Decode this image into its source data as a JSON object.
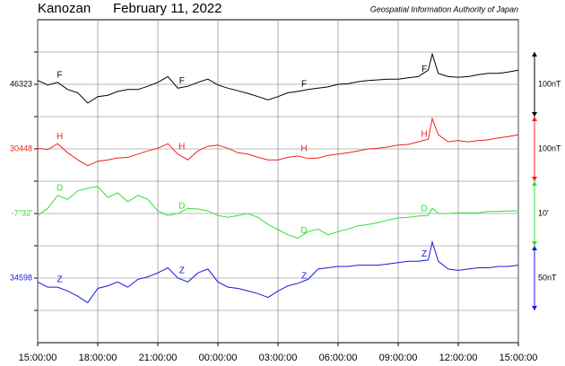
{
  "chart_data": {
    "type": "line",
    "station": "Kanozan",
    "date": "February 11, 2022",
    "source": "Geospatial Information Authority of Japan",
    "grid": true,
    "xlim": [
      0,
      24
    ],
    "xticks": [
      {
        "value": 0,
        "label": "15:00:00"
      },
      {
        "value": 3,
        "label": "18:00:00"
      },
      {
        "value": 6,
        "label": "21:00:00"
      },
      {
        "value": 9,
        "label": "00:00:00"
      },
      {
        "value": 12,
        "label": "03:00:00"
      },
      {
        "value": 15,
        "label": "06:00:00"
      },
      {
        "value": 18,
        "label": "09:00:00"
      },
      {
        "value": 21,
        "label": "12:00:00"
      },
      {
        "value": 24,
        "label": "15:00:00"
      }
    ],
    "x": [
      0,
      0.5,
      1,
      1.5,
      2,
      2.5,
      3,
      3.5,
      4,
      4.5,
      5,
      5.5,
      6,
      6.5,
      7,
      7.5,
      8,
      8.5,
      9,
      9.5,
      10,
      10.5,
      11,
      11.5,
      12,
      12.5,
      13,
      13.5,
      14,
      14.5,
      15,
      15.5,
      16,
      16.5,
      17,
      17.5,
      18,
      18.5,
      19,
      19.5,
      19.7,
      20,
      20.5,
      21,
      21.5,
      22,
      22.5,
      23,
      23.5,
      24
    ],
    "series": [
      {
        "name": "F",
        "color": "#000000",
        "ylim": [
          45923,
          46423
        ],
        "yticks": [
          46323
        ],
        "scale": {
          "value": 100,
          "label": "100nT"
        },
        "values": [
          46329,
          46322,
          46326,
          46315,
          46310,
          46294,
          46304,
          46306,
          46312,
          46315,
          46315,
          46320,
          46326,
          46335,
          46317,
          46320,
          46326,
          46331,
          46322,
          46317,
          46313,
          46309,
          46304,
          46299,
          46304,
          46310,
          46312,
          46315,
          46317,
          46319,
          46323,
          46324,
          46327,
          46329,
          46330,
          46331,
          46331,
          46333,
          46335,
          46345,
          46370,
          46340,
          46335,
          46334,
          46335,
          46338,
          46340,
          46340,
          46342,
          46345
        ]
      },
      {
        "name": "H",
        "color": "#f02020",
        "ylim": [
          30148,
          30648
        ],
        "yticks": [
          30448
        ],
        "scale": {
          "value": 100,
          "label": "100nT"
        },
        "values": [
          30449,
          30447,
          30456,
          30442,
          30431,
          30422,
          30429,
          30431,
          30434,
          30435,
          30440,
          30445,
          30449,
          30456,
          30440,
          30431,
          30445,
          30452,
          30454,
          30449,
          30442,
          30440,
          30435,
          30431,
          30431,
          30435,
          30437,
          30433,
          30434,
          30438,
          30440,
          30442,
          30445,
          30448,
          30449,
          30451,
          30454,
          30455,
          30459,
          30463,
          30495,
          30470,
          30459,
          30461,
          30459,
          30461,
          30462,
          30465,
          30467,
          30470
        ]
      },
      {
        "name": "D",
        "color": "#30e030",
        "ylim": [
          -472,
          -422
        ],
        "yticks": [
          {
            "value": -452,
            "label": "-7°32'"
          }
        ],
        "scale": {
          "value": 10,
          "label": "10'"
        },
        "values": [
          -452.3,
          -451.2,
          -449.2,
          -449.8,
          -448.5,
          -448.1,
          -447.8,
          -449.5,
          -448.8,
          -450.2,
          -449.2,
          -449.8,
          -451.6,
          -452.3,
          -452,
          -451.2,
          -451.3,
          -451.6,
          -452.3,
          -452.6,
          -452.3,
          -452,
          -452.6,
          -453.7,
          -454.5,
          -455.3,
          -455.8,
          -454.8,
          -454.4,
          -455.3,
          -454.8,
          -454.4,
          -453.9,
          -453.7,
          -453.4,
          -453,
          -452.7,
          -452.6,
          -452.4,
          -452.3,
          -451.2,
          -452,
          -452,
          -451.9,
          -451.9,
          -451.9,
          -451.7,
          -451.7,
          -451.6,
          -451.6
        ]
      },
      {
        "name": "Z",
        "color": "#1818e0",
        "ylim": [
          34548,
          34798
        ],
        "yticks": [
          34598
        ],
        "scale": {
          "value": 50,
          "label": "50nT"
        },
        "values": [
          34595,
          34591,
          34591,
          34588,
          34584,
          34579,
          34590,
          34592,
          34595,
          34591,
          34597,
          34599,
          34602,
          34606,
          34598,
          34595,
          34602,
          34605,
          34595,
          34591,
          34590,
          34588,
          34586,
          34583,
          34588,
          34592,
          34594,
          34597,
          34605,
          34606,
          34607,
          34607,
          34608,
          34608,
          34608,
          34609,
          34610,
          34611,
          34611,
          34612,
          34626,
          34611,
          34605,
          34604,
          34605,
          34606,
          34606,
          34607,
          34607,
          34608
        ]
      }
    ]
  }
}
